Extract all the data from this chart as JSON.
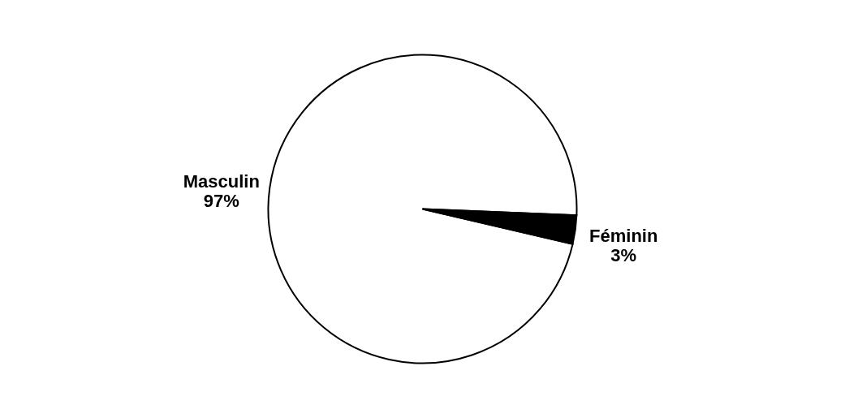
{
  "chart_data": {
    "type": "pie",
    "categories": [
      "Masculin",
      "Féminin"
    ],
    "values": [
      97,
      3
    ],
    "colors": [
      "#ffffff",
      "#000000"
    ],
    "value_labels": [
      "97%",
      "3%"
    ]
  }
}
